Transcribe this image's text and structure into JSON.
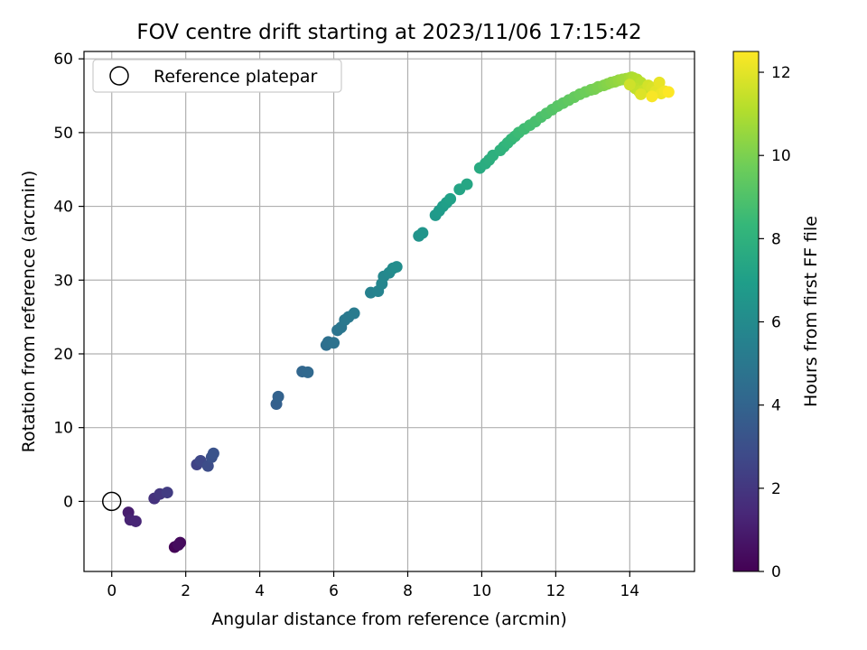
{
  "chart_data": {
    "type": "scatter",
    "title": "FOV centre drift starting at 2023/11/06 17:15:42",
    "xlabel": "Angular distance from reference (arcmin)",
    "ylabel": "Rotation from reference (arcmin)",
    "xlim": [
      -0.75,
      15.75
    ],
    "ylim": [
      -9.5,
      61.0
    ],
    "xticks": [
      0,
      2,
      4,
      6,
      8,
      10,
      12,
      14
    ],
    "yticks": [
      0,
      10,
      20,
      30,
      40,
      50,
      60
    ],
    "grid": true,
    "legend": {
      "placement": "top-left",
      "entries": [
        "Reference platepar"
      ]
    },
    "reference_point": {
      "x": 0,
      "y": 0
    },
    "colorbar": {
      "label": "Hours from first FF file",
      "range": [
        0,
        12.5
      ],
      "ticks": [
        0,
        2,
        4,
        6,
        8,
        10,
        12
      ],
      "colormap": "viridis",
      "colormap_stops": [
        "#440154",
        "#482878",
        "#3e4a89",
        "#31688e",
        "#26828e",
        "#1f9e89",
        "#35b779",
        "#6dcd59",
        "#b4de2c",
        "#fde725"
      ]
    },
    "points": [
      [
        1.7,
        -6.2,
        0.1
      ],
      [
        1.85,
        -5.6,
        0.3
      ],
      [
        1.8,
        -5.9,
        0.4
      ],
      [
        0.45,
        -1.5,
        1.0
      ],
      [
        0.5,
        -2.5,
        1.2
      ],
      [
        0.65,
        -2.7,
        1.3
      ],
      [
        1.15,
        0.4,
        1.8
      ],
      [
        1.3,
        1.0,
        2.0
      ],
      [
        1.5,
        1.2,
        2.2
      ],
      [
        2.3,
        5.0,
        2.5
      ],
      [
        2.4,
        5.5,
        2.7
      ],
      [
        2.6,
        4.8,
        2.9
      ],
      [
        2.7,
        6.0,
        3.1
      ],
      [
        2.75,
        6.5,
        3.2
      ],
      [
        4.45,
        13.2,
        3.8
      ],
      [
        4.5,
        14.2,
        3.9
      ],
      [
        5.15,
        17.6,
        4.1
      ],
      [
        5.3,
        17.5,
        4.2
      ],
      [
        5.8,
        21.2,
        4.5
      ],
      [
        5.85,
        21.6,
        4.6
      ],
      [
        6.0,
        21.5,
        4.7
      ],
      [
        6.1,
        23.2,
        4.8
      ],
      [
        6.2,
        23.6,
        4.9
      ],
      [
        6.3,
        24.6,
        5.0
      ],
      [
        6.4,
        25.0,
        5.1
      ],
      [
        6.55,
        25.5,
        5.2
      ],
      [
        7.0,
        28.3,
        5.5
      ],
      [
        7.2,
        28.5,
        5.6
      ],
      [
        7.3,
        29.5,
        5.7
      ],
      [
        7.35,
        30.5,
        5.8
      ],
      [
        7.5,
        31.0,
        5.9
      ],
      [
        7.6,
        31.6,
        6.0
      ],
      [
        7.7,
        31.8,
        6.1
      ],
      [
        8.3,
        36.0,
        6.4
      ],
      [
        8.4,
        36.4,
        6.5
      ],
      [
        8.75,
        38.8,
        6.7
      ],
      [
        8.85,
        39.4,
        6.8
      ],
      [
        8.95,
        40.0,
        6.9
      ],
      [
        9.05,
        40.5,
        7.0
      ],
      [
        9.15,
        41.0,
        7.1
      ],
      [
        9.4,
        42.3,
        7.3
      ],
      [
        9.6,
        43.0,
        7.4
      ],
      [
        9.95,
        45.2,
        7.6
      ],
      [
        10.1,
        45.8,
        7.7
      ],
      [
        10.2,
        46.3,
        7.8
      ],
      [
        10.3,
        46.9,
        7.9
      ],
      [
        10.5,
        47.6,
        8.0
      ],
      [
        10.6,
        48.1,
        8.1
      ],
      [
        10.7,
        48.6,
        8.2
      ],
      [
        10.8,
        49.1,
        8.3
      ],
      [
        10.9,
        49.5,
        8.4
      ],
      [
        11.0,
        50.0,
        8.5
      ],
      [
        11.15,
        50.5,
        8.6
      ],
      [
        11.3,
        51.0,
        8.7
      ],
      [
        11.45,
        51.5,
        8.8
      ],
      [
        11.6,
        52.1,
        8.9
      ],
      [
        11.75,
        52.6,
        9.0
      ],
      [
        11.9,
        53.1,
        9.1
      ],
      [
        12.05,
        53.6,
        9.2
      ],
      [
        12.2,
        54.0,
        9.3
      ],
      [
        12.35,
        54.4,
        9.4
      ],
      [
        12.5,
        54.8,
        9.5
      ],
      [
        12.65,
        55.2,
        9.6
      ],
      [
        12.8,
        55.5,
        9.7
      ],
      [
        12.95,
        55.8,
        9.8
      ],
      [
        13.05,
        55.9,
        9.9
      ],
      [
        13.15,
        56.2,
        10.0
      ],
      [
        13.3,
        56.4,
        10.1
      ],
      [
        13.4,
        56.6,
        10.2
      ],
      [
        13.5,
        56.8,
        10.3
      ],
      [
        13.6,
        56.9,
        10.4
      ],
      [
        13.7,
        57.1,
        10.5
      ],
      [
        13.8,
        57.2,
        10.6
      ],
      [
        13.9,
        57.3,
        10.7
      ],
      [
        14.0,
        57.4,
        10.8
      ],
      [
        14.05,
        57.5,
        10.9
      ],
      [
        14.1,
        57.4,
        11.0
      ],
      [
        14.2,
        57.2,
        11.1
      ],
      [
        14.3,
        56.8,
        11.2
      ],
      [
        14.15,
        56.0,
        11.3
      ],
      [
        14.25,
        55.6,
        11.4
      ],
      [
        14.4,
        55.8,
        11.5
      ],
      [
        14.0,
        56.5,
        11.6
      ],
      [
        14.5,
        56.4,
        11.7
      ],
      [
        14.6,
        56.1,
        11.8
      ],
      [
        14.3,
        55.2,
        11.9
      ],
      [
        14.7,
        55.6,
        12.0
      ],
      [
        14.8,
        56.8,
        12.1
      ],
      [
        14.85,
        55.3,
        12.2
      ],
      [
        14.95,
        55.6,
        12.3
      ],
      [
        14.6,
        54.9,
        12.4
      ],
      [
        15.05,
        55.5,
        12.5
      ]
    ]
  }
}
